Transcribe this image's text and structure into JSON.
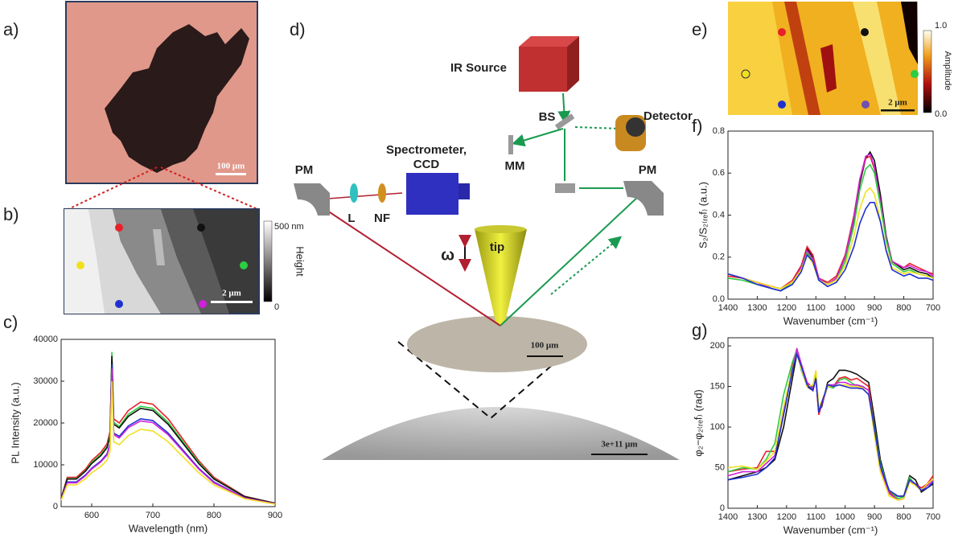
{
  "panel_labels": [
    "a)",
    "b)",
    "c)",
    "d)",
    "e)",
    "f)",
    "g)"
  ],
  "panel_a": {
    "scale_bar": "100 μm"
  },
  "panel_b": {
    "colorbar_max": "500 nm",
    "colorbar_min": "0",
    "colorbar_label": "Height",
    "scale_bar": "2 μm"
  },
  "panel_d": {
    "ir_source": "IR Source",
    "detector": "Detector",
    "bs": "BS",
    "mm": "MM",
    "pm_left": "PM",
    "pm_right": "PM",
    "spectrometer": "Spectrometer,",
    "ccd": "CCD",
    "lens": "L",
    "nf": "NF",
    "omega": "ω",
    "tip": "tip",
    "sample_scale": "100 μm",
    "dome_scale": "3e+11 μm"
  },
  "panel_e": {
    "colorbar_max": "1.0",
    "colorbar_min": "0.0",
    "colorbar_label": "Amplitude",
    "scale_bar": "2 μm"
  },
  "chart_data": [
    {
      "type": "line",
      "xlabel": "Wavelength (nm)",
      "ylabel": "PL Intensity (a.u.)",
      "x": [
        550,
        560,
        575,
        590,
        600,
        615,
        625,
        630,
        633,
        636,
        645,
        660,
        680,
        700,
        725,
        750,
        775,
        800,
        850,
        900
      ],
      "series": [
        {
          "color": "#e8202a",
          "values": [
            2000,
            7000,
            7000,
            9000,
            11000,
            13000,
            15000,
            18000,
            35000,
            21000,
            20000,
            23000,
            25000,
            24500,
            21000,
            16000,
            11000,
            7000,
            2500,
            800
          ]
        },
        {
          "color": "#2ecc40",
          "values": [
            1900,
            6700,
            6700,
            8600,
            10600,
            12500,
            14400,
            17300,
            37000,
            20200,
            19200,
            22100,
            24000,
            23500,
            20200,
            15400,
            10600,
            6700,
            2400,
            800
          ]
        },
        {
          "color": "#111111",
          "values": [
            1900,
            6600,
            6600,
            8500,
            10300,
            12200,
            14100,
            16900,
            36000,
            19700,
            18800,
            21600,
            23500,
            23000,
            19700,
            15000,
            10300,
            6600,
            2400,
            800
          ]
        },
        {
          "color": "#2030d0",
          "values": [
            1700,
            5900,
            5900,
            7600,
            9200,
            10900,
            12600,
            15100,
            34000,
            17600,
            16800,
            19300,
            21000,
            20600,
            17600,
            13400,
            9200,
            5900,
            2100,
            700
          ]
        },
        {
          "color": "#d020d8",
          "values": [
            1600,
            5700,
            5700,
            7400,
            9000,
            10700,
            12300,
            14800,
            33000,
            17200,
            16400,
            18900,
            20500,
            20100,
            17200,
            13100,
            9000,
            5700,
            2100,
            700
          ]
        },
        {
          "color": "#f0e020",
          "values": [
            1500,
            5200,
            5200,
            6700,
            8100,
            9600,
            11100,
            13300,
            30000,
            15500,
            14800,
            17000,
            18500,
            18100,
            15500,
            11800,
            8100,
            5200,
            1900,
            600
          ]
        }
      ],
      "xlim": [
        550,
        900
      ],
      "ylim": [
        0,
        40000
      ],
      "xticks": [
        600,
        700,
        800,
        900
      ],
      "yticks": [
        0,
        10000,
        20000,
        30000,
        40000
      ]
    },
    {
      "type": "line",
      "xlabel": "Wavenumber (cm⁻¹)",
      "ylabel": "S₂/S₂₍ᵣₑf₎ (a.u.)",
      "x": [
        1400,
        1350,
        1300,
        1250,
        1220,
        1180,
        1150,
        1130,
        1110,
        1090,
        1060,
        1030,
        1000,
        970,
        950,
        930,
        915,
        900,
        880,
        860,
        840,
        800,
        780,
        750,
        720,
        700
      ],
      "series": [
        {
          "color": "#111111",
          "values": [
            0.12,
            0.1,
            0.08,
            0.05,
            0.04,
            0.08,
            0.15,
            0.24,
            0.2,
            0.1,
            0.07,
            0.1,
            0.2,
            0.38,
            0.55,
            0.67,
            0.7,
            0.66,
            0.5,
            0.3,
            0.18,
            0.14,
            0.15,
            0.13,
            0.12,
            0.1
          ]
        },
        {
          "color": "#e8202a",
          "values": [
            0.11,
            0.1,
            0.08,
            0.06,
            0.05,
            0.09,
            0.16,
            0.25,
            0.21,
            0.1,
            0.08,
            0.11,
            0.21,
            0.4,
            0.57,
            0.67,
            0.68,
            0.62,
            0.47,
            0.29,
            0.18,
            0.15,
            0.17,
            0.15,
            0.13,
            0.12
          ]
        },
        {
          "color": "#d020d8",
          "values": [
            0.12,
            0.1,
            0.08,
            0.05,
            0.04,
            0.08,
            0.15,
            0.23,
            0.19,
            0.1,
            0.07,
            0.1,
            0.2,
            0.39,
            0.57,
            0.68,
            0.69,
            0.63,
            0.47,
            0.29,
            0.18,
            0.15,
            0.16,
            0.14,
            0.13,
            0.11
          ]
        },
        {
          "color": "#2ecc40",
          "values": [
            0.1,
            0.09,
            0.07,
            0.05,
            0.04,
            0.08,
            0.14,
            0.22,
            0.18,
            0.09,
            0.07,
            0.09,
            0.18,
            0.35,
            0.52,
            0.62,
            0.64,
            0.6,
            0.45,
            0.28,
            0.17,
            0.13,
            0.14,
            0.12,
            0.11,
            0.1
          ]
        },
        {
          "color": "#f0e020",
          "values": [
            0.12,
            0.1,
            0.08,
            0.06,
            0.05,
            0.08,
            0.14,
            0.21,
            0.17,
            0.09,
            0.07,
            0.09,
            0.16,
            0.3,
            0.43,
            0.51,
            0.53,
            0.5,
            0.38,
            0.24,
            0.15,
            0.12,
            0.13,
            0.12,
            0.11,
            0.1
          ]
        },
        {
          "color": "#2030d0",
          "values": [
            0.12,
            0.1,
            0.07,
            0.05,
            0.04,
            0.07,
            0.13,
            0.21,
            0.18,
            0.09,
            0.06,
            0.08,
            0.14,
            0.25,
            0.36,
            0.43,
            0.46,
            0.46,
            0.37,
            0.23,
            0.14,
            0.11,
            0.12,
            0.1,
            0.1,
            0.09
          ]
        }
      ],
      "xlim": [
        1400,
        700
      ],
      "ylim": [
        0,
        0.8
      ],
      "xticks": [
        1400,
        1300,
        1200,
        1100,
        1000,
        900,
        800,
        700
      ],
      "yticks": [
        {
          "value": 0,
          "label": "0.0"
        },
        {
          "value": 0.2,
          "label": "0.2"
        },
        {
          "value": 0.4,
          "label": "0.4"
        },
        {
          "value": 0.6,
          "label": "0.6"
        },
        {
          "value": 0.8,
          "label": "0.8"
        }
      ]
    },
    {
      "type": "line",
      "xlabel": "Wavenumber (cm⁻¹)",
      "ylabel": "φ₂−φ₂₍ᵣₑf₎ (rad)",
      "x": [
        1400,
        1350,
        1300,
        1270,
        1240,
        1210,
        1180,
        1165,
        1150,
        1130,
        1110,
        1100,
        1090,
        1080,
        1060,
        1040,
        1020,
        1000,
        980,
        960,
        940,
        920,
        900,
        880,
        850,
        820,
        800,
        780,
        760,
        740,
        720,
        700
      ],
      "series": [
        {
          "color": "#111111",
          "values": [
            35,
            40,
            45,
            50,
            60,
            100,
            160,
            190,
            175,
            150,
            145,
            160,
            120,
            125,
            155,
            160,
            170,
            170,
            168,
            165,
            160,
            155,
            110,
            60,
            20,
            15,
            15,
            40,
            35,
            20,
            25,
            30
          ]
        },
        {
          "color": "#e8202a",
          "values": [
            45,
            48,
            50,
            70,
            70,
            120,
            175,
            195,
            175,
            155,
            145,
            160,
            115,
            128,
            150,
            150,
            160,
            162,
            158,
            160,
            155,
            150,
            100,
            55,
            20,
            10,
            12,
            35,
            30,
            25,
            30,
            40
          ]
        },
        {
          "color": "#2ecc40",
          "values": [
            45,
            50,
            48,
            60,
            80,
            140,
            180,
            195,
            170,
            150,
            150,
            165,
            120,
            130,
            150,
            148,
            158,
            160,
            155,
            150,
            150,
            145,
            100,
            55,
            22,
            12,
            14,
            38,
            28,
            22,
            30,
            35
          ]
        },
        {
          "color": "#d020d8",
          "values": [
            40,
            45,
            45,
            55,
            65,
            120,
            170,
            197,
            178,
            155,
            148,
            160,
            118,
            128,
            152,
            152,
            155,
            155,
            152,
            152,
            150,
            145,
            95,
            50,
            18,
            10,
            12,
            35,
            28,
            22,
            28,
            34
          ]
        },
        {
          "color": "#f0e020",
          "values": [
            50,
            52,
            48,
            58,
            70,
            125,
            172,
            190,
            172,
            150,
            152,
            170,
            125,
            132,
            150,
            150,
            152,
            152,
            150,
            150,
            148,
            140,
            90,
            45,
            15,
            10,
            12,
            32,
            28,
            22,
            30,
            36
          ]
        },
        {
          "color": "#2030d0",
          "values": [
            35,
            38,
            42,
            50,
            62,
            115,
            170,
            190,
            175,
            152,
            145,
            160,
            118,
            130,
            152,
            150,
            152,
            150,
            148,
            148,
            147,
            140,
            98,
            52,
            22,
            15,
            15,
            35,
            30,
            22,
            25,
            32
          ]
        }
      ],
      "xlim": [
        1400,
        700
      ],
      "ylim": [
        0,
        210
      ],
      "xticks": [
        1400,
        1300,
        1200,
        1100,
        1000,
        900,
        800,
        700
      ],
      "yticks": [
        0,
        50,
        100,
        150,
        200
      ]
    }
  ]
}
